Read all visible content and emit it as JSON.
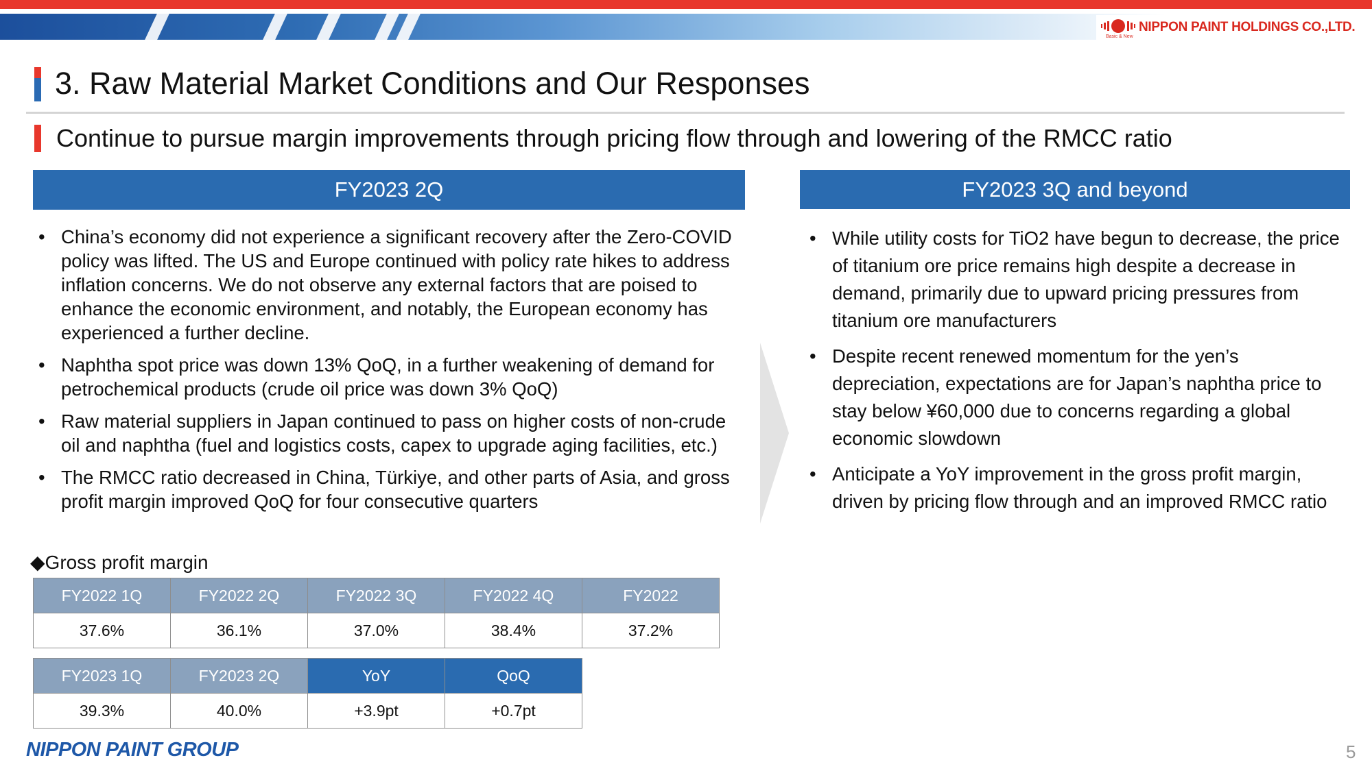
{
  "brand": {
    "company_logo_text": "NIPPON PAINT HOLDINGS CO.,LTD.",
    "company_logo_tagline": "Basic & New",
    "group_logo_text": "NIPPON PAINT GROUP",
    "accent_red": "#e8372c",
    "accent_blue": "#2a6bb0"
  },
  "slide": {
    "title": "3. Raw Material Market Conditions and Our Responses",
    "subtitle": "Continue to pursue margin improvements through pricing flow through and lowering of the RMCC ratio",
    "page_number": "5"
  },
  "left_panel": {
    "header": "FY2023 2Q",
    "bullets": [
      "China’s economy did not experience a significant recovery after the Zero-COVID policy was lifted. The US and Europe continued with policy rate hikes to address inflation concerns. We do not observe any external factors that are poised to enhance the economic environment, and notably, the European economy has experienced a further decline.",
      "Naphtha spot price was down 13% QoQ, in a further weakening of demand for petrochemical products (crude oil price was down 3% QoQ)",
      "Raw material suppliers in Japan continued to pass on higher costs of non-crude oil and naphtha (fuel and logistics costs, capex to upgrade aging facilities, etc.)",
      "The RMCC ratio decreased in China, Türkiye, and other parts of Asia, and gross profit margin improved QoQ for four consecutive quarters"
    ]
  },
  "right_panel": {
    "header": "FY2023 3Q and beyond",
    "bullets": [
      "While utility costs for TiO2 have begun to decrease, the price of titanium ore price remains high despite a decrease in demand, primarily due to upward pricing pressures from titanium ore manufacturers",
      "Despite recent renewed momentum for the yen’s depreciation, expectations are for Japan’s naphtha price to stay below ¥60,000 due to concerns regarding a global economic slowdown",
      "Anticipate a YoY improvement in the gross profit margin, driven by pricing flow through and an improved RMCC ratio"
    ]
  },
  "gross_profit": {
    "label": "◆Gross profit margin",
    "table1": {
      "headers": [
        "FY2022 1Q",
        "FY2022 2Q",
        "FY2022 3Q",
        "FY2022 4Q",
        "FY2022"
      ],
      "values": [
        "37.6%",
        "36.1%",
        "37.0%",
        "38.4%",
        "37.2%"
      ]
    },
    "table2": {
      "headers": [
        "FY2023 1Q",
        "FY2023 2Q",
        "YoY",
        "QoQ"
      ],
      "values": [
        "39.3%",
        "40.0%",
        "+3.9pt",
        "+0.7pt"
      ]
    }
  }
}
